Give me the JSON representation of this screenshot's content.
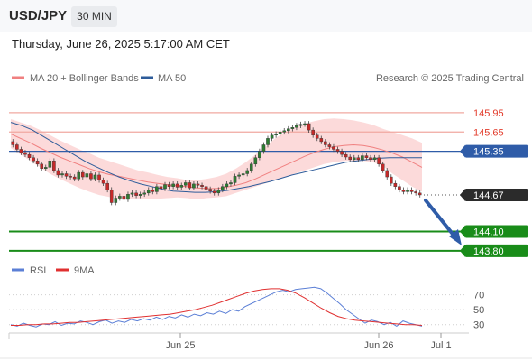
{
  "header": {
    "symbol": "USD/JPY",
    "timeframe": "30 MIN",
    "datetime": "Thursday, June 26, 2025 5:17:00 AM CET"
  },
  "chart_data": [
    {
      "type": "candlestick",
      "legend": [
        {
          "label": "MA 20 + Bollinger Bands",
          "color": "#f08080"
        },
        {
          "label": "MA 50",
          "color": "#2e5c9a"
        }
      ],
      "attribution": "Research © 2025 Trading Central",
      "series": [
        {
          "name": "Price",
          "values": [
            145.45,
            145.38,
            145.33,
            145.3,
            145.25,
            145.2,
            145.15,
            145.08,
            145.1,
            145.2,
            145.05,
            144.98,
            145,
            144.96,
            144.95,
            144.92,
            145.02,
            144.95,
            145,
            144.92,
            144.98,
            144.9,
            144.85,
            144.75,
            144.55,
            144.62,
            144.65,
            144.6,
            144.68,
            144.7,
            144.66,
            144.68,
            144.7,
            144.75,
            144.72,
            144.8,
            144.77,
            144.83,
            144.8,
            144.84,
            144.79,
            144.82,
            144.86,
            144.78,
            144.84,
            144.82,
            144.8,
            144.76,
            144.73,
            144.7,
            144.75,
            144.8,
            144.84,
            144.86,
            144.96,
            144.98,
            145,
            145.05,
            145.15,
            145.25,
            145.35,
            145.45,
            145.55,
            145.6,
            145.62,
            145.65,
            145.67,
            145.7,
            145.72,
            145.75,
            145.77,
            145.78,
            145.68,
            145.6,
            145.55,
            145.5,
            145.45,
            145.42,
            145.38,
            145.35,
            145.3,
            145.26,
            145.22,
            145.25,
            145.22,
            145.28,
            145.25,
            145.22,
            145.25,
            145.15,
            145.05,
            144.95,
            144.85,
            144.8,
            144.75,
            144.72,
            144.75,
            144.72,
            144.7,
            144.67
          ]
        },
        {
          "name": "MA 20",
          "values": [
            145.62,
            145.55,
            145.48,
            145.4,
            145.33,
            145.26,
            145.2,
            145.14,
            145.08,
            145.03,
            144.99,
            144.96,
            144.93,
            144.9,
            144.87,
            144.85,
            144.83,
            144.81,
            144.8,
            144.78,
            144.77,
            144.77,
            144.79,
            144.82,
            144.86,
            144.92,
            144.99,
            145.06,
            145.13,
            145.2,
            145.27,
            145.33,
            145.38,
            145.42,
            145.44,
            145.45,
            145.44,
            145.41,
            145.37,
            145.32,
            145.26,
            145.18,
            145.1
          ]
        },
        {
          "name": "Bollinger Upper",
          "values": [
            145.85,
            145.8,
            145.75,
            145.68,
            145.6,
            145.52,
            145.45,
            145.38,
            145.32,
            145.25,
            145.2,
            145.15,
            145.1,
            145.05,
            145.02,
            144.98,
            144.95,
            144.93,
            144.9,
            144.9,
            144.92,
            144.95,
            145.0,
            145.08,
            145.18,
            145.3,
            145.42,
            145.55,
            145.65,
            145.72,
            145.78,
            145.82,
            145.85,
            145.86,
            145.85,
            145.83,
            145.8,
            145.76,
            145.7,
            145.65,
            145.6,
            145.55,
            145.48
          ]
        },
        {
          "name": "Bollinger Lower",
          "values": [
            145.4,
            145.3,
            145.2,
            145.1,
            145.0,
            144.92,
            144.85,
            144.78,
            144.72,
            144.67,
            144.64,
            144.6,
            144.6,
            144.6,
            144.6,
            144.61,
            144.62,
            144.63,
            144.62,
            144.6,
            144.62,
            144.63,
            144.65,
            144.7,
            144.75,
            144.8,
            144.85,
            144.9,
            144.95,
            145.0,
            145.05,
            145.1,
            145.15,
            145.18,
            145.2,
            145.2,
            145.2,
            145.18,
            145.12,
            145.0,
            144.9,
            144.8,
            144.72
          ]
        },
        {
          "name": "MA 50",
          "values": [
            145.8,
            145.75,
            145.68,
            145.58,
            145.48,
            145.38,
            145.28,
            145.18,
            145.1,
            145.02,
            144.95,
            144.89,
            144.84,
            144.8,
            144.76,
            144.73,
            144.72,
            144.71,
            144.71,
            144.72,
            144.74,
            144.77,
            144.8,
            144.84,
            144.88,
            144.93,
            144.98,
            145.02,
            145.06,
            145.1,
            145.14,
            145.18,
            145.2,
            145.22,
            145.24,
            145.25,
            145.25,
            145.25,
            145.25
          ]
        }
      ],
      "price_levels": [
        {
          "label": "145.95",
          "value": 145.95,
          "color": "#e23b2b",
          "line": "#f0a8a0"
        },
        {
          "label": "145.65",
          "value": 145.65,
          "color": "#e23b2b",
          "line": "#f0a8a0"
        },
        {
          "label": "145.35",
          "value": 145.35,
          "color": "#ffffff",
          "bg": "#2f5ca8",
          "line": "#2f5ca8"
        },
        {
          "label": "144.67",
          "value": 144.67,
          "color": "#ffffff",
          "bg": "#2b2b2b",
          "line": "#777777"
        },
        {
          "label": "144.10",
          "value": 144.1,
          "color": "#ffffff",
          "bg": "#198c19",
          "line": "#198c19"
        },
        {
          "label": "143.80",
          "value": 143.8,
          "color": "#ffffff",
          "bg": "#198c19",
          "line": "#198c19"
        }
      ],
      "ylim": [
        143.7,
        146.3
      ]
    },
    {
      "type": "line",
      "legend": [
        {
          "label": "RSI",
          "color": "#5b7fd6"
        },
        {
          "label": "9MA",
          "color": "#e03030"
        }
      ],
      "series": [
        {
          "name": "RSI",
          "values": [
            30,
            28,
            32,
            29,
            27,
            31,
            30,
            34,
            29,
            32,
            31,
            35,
            33,
            30,
            34,
            36,
            32,
            35,
            33,
            37,
            35,
            38,
            36,
            40,
            37,
            41,
            39,
            43,
            40,
            44,
            42,
            46,
            44,
            48,
            45,
            50,
            48,
            54,
            58,
            62,
            66,
            70,
            74,
            76,
            74,
            77,
            78,
            79,
            80,
            78,
            72,
            65,
            58,
            50,
            44,
            38,
            32,
            36,
            34,
            30,
            33,
            28,
            35,
            32,
            30,
            28
          ]
        },
        {
          "name": "9MA",
          "values": [
            29,
            29,
            30,
            30,
            31,
            31,
            32,
            33,
            33,
            34,
            35,
            36,
            37,
            38,
            39,
            40,
            41,
            42,
            43,
            44,
            46,
            48,
            50,
            53,
            56,
            60,
            64,
            68,
            72,
            75,
            77,
            78,
            78,
            76,
            72,
            66,
            59,
            52,
            46,
            41,
            38,
            36,
            35,
            34,
            33,
            32,
            31,
            30,
            30,
            29
          ]
        }
      ],
      "ylim": [
        20,
        90
      ],
      "tick_labels": [
        "70",
        "50",
        "30"
      ],
      "tick_values": [
        70,
        50,
        30
      ]
    }
  ],
  "xaxis": {
    "tick_labels": [
      "Jun 25",
      "Jun 26",
      "Jul 1"
    ]
  }
}
